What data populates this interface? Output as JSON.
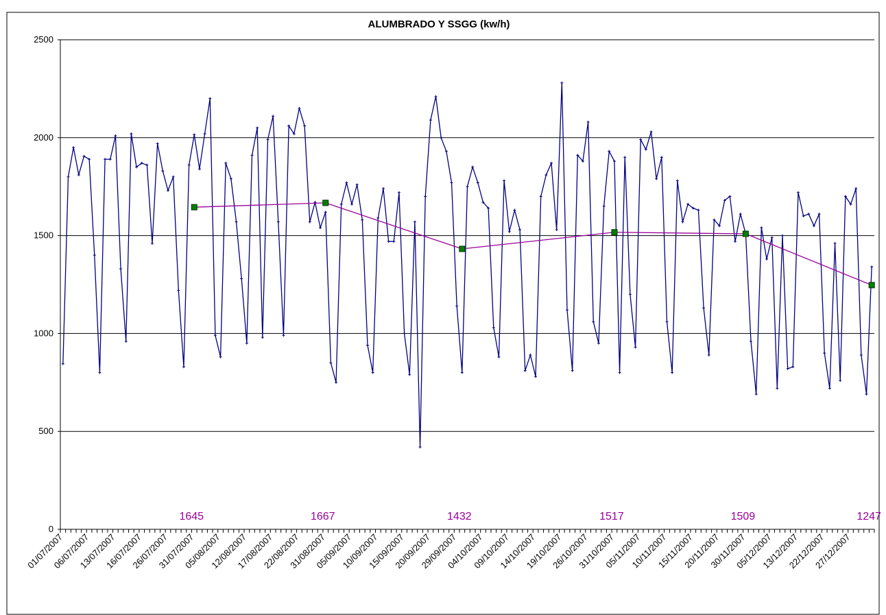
{
  "chart_data": {
    "type": "line",
    "title": "ALUMBRADO Y SSGG (kw/h)",
    "categories": [
      "01/07/2007",
      null,
      null,
      null,
      null,
      "06/07/2007",
      null,
      null,
      null,
      null,
      "13/07/2007",
      null,
      null,
      null,
      null,
      "16/07/2007",
      null,
      null,
      null,
      null,
      "26/07/2007",
      null,
      null,
      null,
      null,
      "31/07/2007",
      null,
      null,
      null,
      null,
      "05/08/2007",
      null,
      null,
      null,
      null,
      "12/08/2007",
      null,
      null,
      null,
      null,
      "17/08/2007",
      null,
      null,
      null,
      null,
      "22/08/2007",
      null,
      null,
      null,
      null,
      "31/08/2007",
      null,
      null,
      null,
      null,
      "05/09/2007",
      null,
      null,
      null,
      null,
      "10/09/2007",
      null,
      null,
      null,
      null,
      "15/09/2007",
      null,
      null,
      null,
      null,
      "20/09/2007",
      null,
      null,
      null,
      null,
      "29/09/2007",
      null,
      null,
      null,
      null,
      "04/10/2007",
      null,
      null,
      null,
      null,
      "09/10/2007",
      null,
      null,
      null,
      null,
      "14/10/2007",
      null,
      null,
      null,
      null,
      "19/10/2007",
      null,
      null,
      null,
      null,
      "26/10/2007",
      null,
      null,
      null,
      null,
      "31/10/2007",
      null,
      null,
      null,
      null,
      "05/11/2007",
      null,
      null,
      null,
      null,
      "10/11/2007",
      null,
      null,
      null,
      null,
      "15/11/2007",
      null,
      null,
      null,
      null,
      "20/11/2007",
      null,
      null,
      null,
      null,
      "30/11/2007",
      null,
      null,
      null,
      null,
      "05/12/2007",
      null,
      null,
      null,
      null,
      "13/12/2007",
      null,
      null,
      null,
      null,
      "22/12/2007",
      null,
      null,
      null,
      null,
      "27/12/2007",
      null,
      null,
      null,
      null
    ],
    "series": [
      {
        "color": "#000080",
        "values": [
          845,
          1800,
          1950,
          1810,
          1905,
          1890,
          1400,
          800,
          1890,
          1890,
          2010,
          1330,
          960,
          2020,
          1850,
          1870,
          1860,
          1460,
          1970,
          1830,
          1730,
          1800,
          1220,
          830,
          1860,
          2015,
          1840,
          2020,
          2200,
          990,
          880,
          1870,
          1790,
          1570,
          1280,
          950,
          1910,
          2050,
          980,
          1990,
          2110,
          1570,
          990,
          2060,
          2020,
          2150,
          2060,
          1570,
          1670,
          1540,
          1620,
          850,
          750,
          1660,
          1770,
          1660,
          1760,
          1580,
          940,
          800,
          1590,
          1740,
          1470,
          1470,
          1720,
          1000,
          790,
          1570,
          420,
          1700,
          2090,
          2210,
          2000,
          1930,
          1770,
          1140,
          800,
          1750,
          1850,
          1770,
          1670,
          1640,
          1030,
          880,
          1780,
          1520,
          1630,
          1530,
          810,
          890,
          780,
          1700,
          1810,
          1870,
          1530,
          2280,
          1120,
          810,
          1910,
          1880,
          2080,
          1060,
          950,
          1650,
          1930,
          1880,
          800,
          1900,
          1200,
          930,
          1990,
          1940,
          2030,
          1790,
          1900,
          1060,
          800,
          1780,
          1570,
          1660,
          1640,
          1630,
          1130,
          890,
          1580,
          1550,
          1680,
          1700,
          1470,
          1610,
          1510,
          960,
          690,
          1540,
          1380,
          1490,
          720,
          1500,
          820,
          830,
          1720,
          1600,
          1610,
          1550,
          1610,
          900,
          720,
          1460,
          760,
          1700,
          1660,
          1740,
          890,
          690,
          1340
        ]
      },
      {
        "color": "#990099",
        "marker_color": "#008000",
        "values": [
          null,
          null,
          null,
          null,
          null,
          null,
          null,
          null,
          null,
          null,
          null,
          null,
          null,
          null,
          null,
          null,
          null,
          null,
          null,
          null,
          null,
          null,
          null,
          null,
          null,
          1645,
          null,
          null,
          null,
          null,
          null,
          null,
          null,
          null,
          null,
          null,
          null,
          null,
          null,
          null,
          null,
          null,
          null,
          null,
          null,
          null,
          null,
          null,
          null,
          null,
          1667,
          null,
          null,
          null,
          null,
          null,
          null,
          null,
          null,
          null,
          null,
          null,
          null,
          null,
          null,
          null,
          null,
          null,
          null,
          null,
          null,
          null,
          null,
          null,
          null,
          null,
          1432,
          null,
          null,
          null,
          null,
          null,
          null,
          null,
          null,
          null,
          null,
          null,
          null,
          null,
          null,
          null,
          null,
          null,
          null,
          null,
          null,
          null,
          null,
          null,
          null,
          null,
          null,
          null,
          null,
          1517,
          null,
          null,
          null,
          null,
          null,
          null,
          null,
          null,
          null,
          null,
          null,
          null,
          null,
          null,
          null,
          null,
          null,
          null,
          null,
          null,
          null,
          null,
          null,
          null,
          1509,
          null,
          null,
          null,
          null,
          null,
          null,
          null,
          null,
          null,
          null,
          null,
          null,
          null,
          null,
          null,
          null,
          null,
          null,
          null,
          null,
          null,
          null,
          null,
          1247
        ]
      }
    ],
    "ylim": [
      0,
      2500
    ],
    "yticks": [
      0,
      500,
      1000,
      1500,
      2000,
      2500
    ],
    "grid": true
  }
}
